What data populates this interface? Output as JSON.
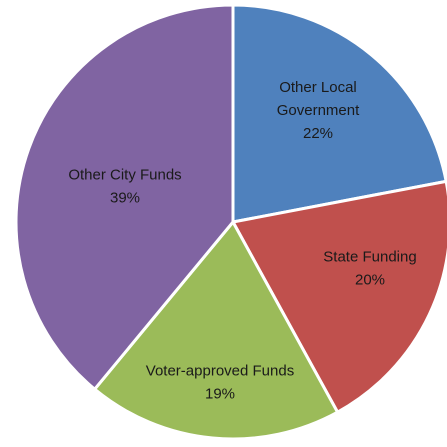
{
  "chart_data": {
    "type": "pie",
    "title": "",
    "slices": [
      {
        "label_lines": [
          "Other Local",
          "Government"
        ],
        "percent_label": "22%",
        "value": 22,
        "color": "#4F81BD"
      },
      {
        "label_lines": [
          "State Funding"
        ],
        "percent_label": "20%",
        "value": 20,
        "color": "#C0504D"
      },
      {
        "label_lines": [
          "Voter-approved Funds"
        ],
        "percent_label": "19%",
        "value": 19,
        "color": "#9BBB59"
      },
      {
        "label_lines": [
          "Other City Funds"
        ],
        "percent_label": "39%",
        "value": 39,
        "color": "#8064A2"
      }
    ],
    "start_angle_deg": 0,
    "direction": "clockwise",
    "legend": "none",
    "border_color": "#ffffff"
  }
}
